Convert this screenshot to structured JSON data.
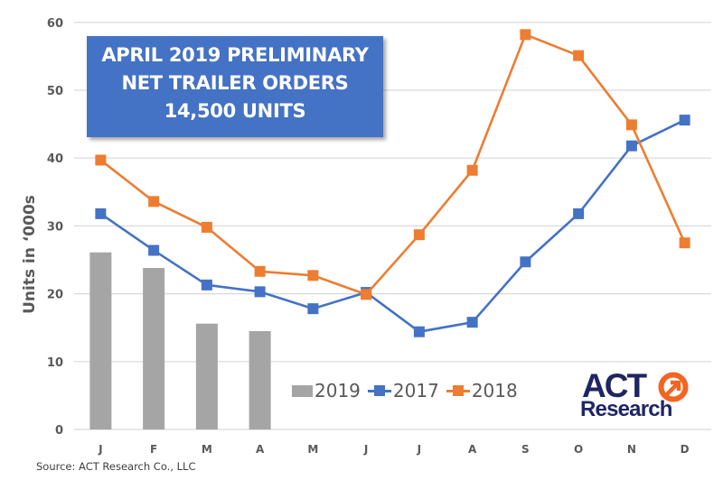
{
  "callout": {
    "line1": "APRIL 2019 PRELIMINARY",
    "line2": "NET TRAILER ORDERS",
    "line3": "14,500 UNITS"
  },
  "source": "Source: ACT Research Co., LLC",
  "logo": {
    "line1": "ACT",
    "line2": "Research"
  },
  "colors": {
    "2019": "#a5a5a5",
    "2017": "#4472c4",
    "2018": "#ed7d31",
    "callout_bg": "#4472c4",
    "logo_navy": "#1f2563",
    "logo_orange": "#f26522"
  },
  "legend": [
    {
      "label": "2019",
      "kind": "bar"
    },
    {
      "label": "2017",
      "kind": "line"
    },
    {
      "label": "2018",
      "kind": "line"
    }
  ],
  "chart_data": {
    "type": "bar+line",
    "title": "APRIL 2019 PRELIMINARY NET TRAILER ORDERS 14,500 UNITS",
    "xlabel": "",
    "ylabel": "Units in ‘000s",
    "ylim": [
      0,
      60
    ],
    "yticks": [
      0,
      10,
      20,
      30,
      40,
      50,
      60
    ],
    "grid": true,
    "legend_position": "bottom-center inside plot",
    "categories": [
      "J",
      "F",
      "M",
      "A",
      "M",
      "J",
      "J",
      "A",
      "S",
      "O",
      "N",
      "D"
    ],
    "series": [
      {
        "name": "2019",
        "type": "bar",
        "values": [
          26.1,
          23.8,
          15.6,
          14.5,
          null,
          null,
          null,
          null,
          null,
          null,
          null,
          null
        ]
      },
      {
        "name": "2017",
        "type": "line",
        "marker": "square",
        "values": [
          31.8,
          26.4,
          21.3,
          20.3,
          17.8,
          20.2,
          14.4,
          15.8,
          24.7,
          31.8,
          41.8,
          45.6
        ]
      },
      {
        "name": "2018",
        "type": "line",
        "marker": "square",
        "values": [
          39.7,
          33.6,
          29.8,
          23.3,
          22.7,
          19.9,
          28.7,
          38.2,
          58.2,
          55.1,
          44.9,
          27.5
        ]
      }
    ],
    "annotations": [
      "APRIL 2019 PRELIMINARY NET TRAILER ORDERS 14,500 UNITS",
      "Source: ACT Research Co., LLC"
    ]
  }
}
